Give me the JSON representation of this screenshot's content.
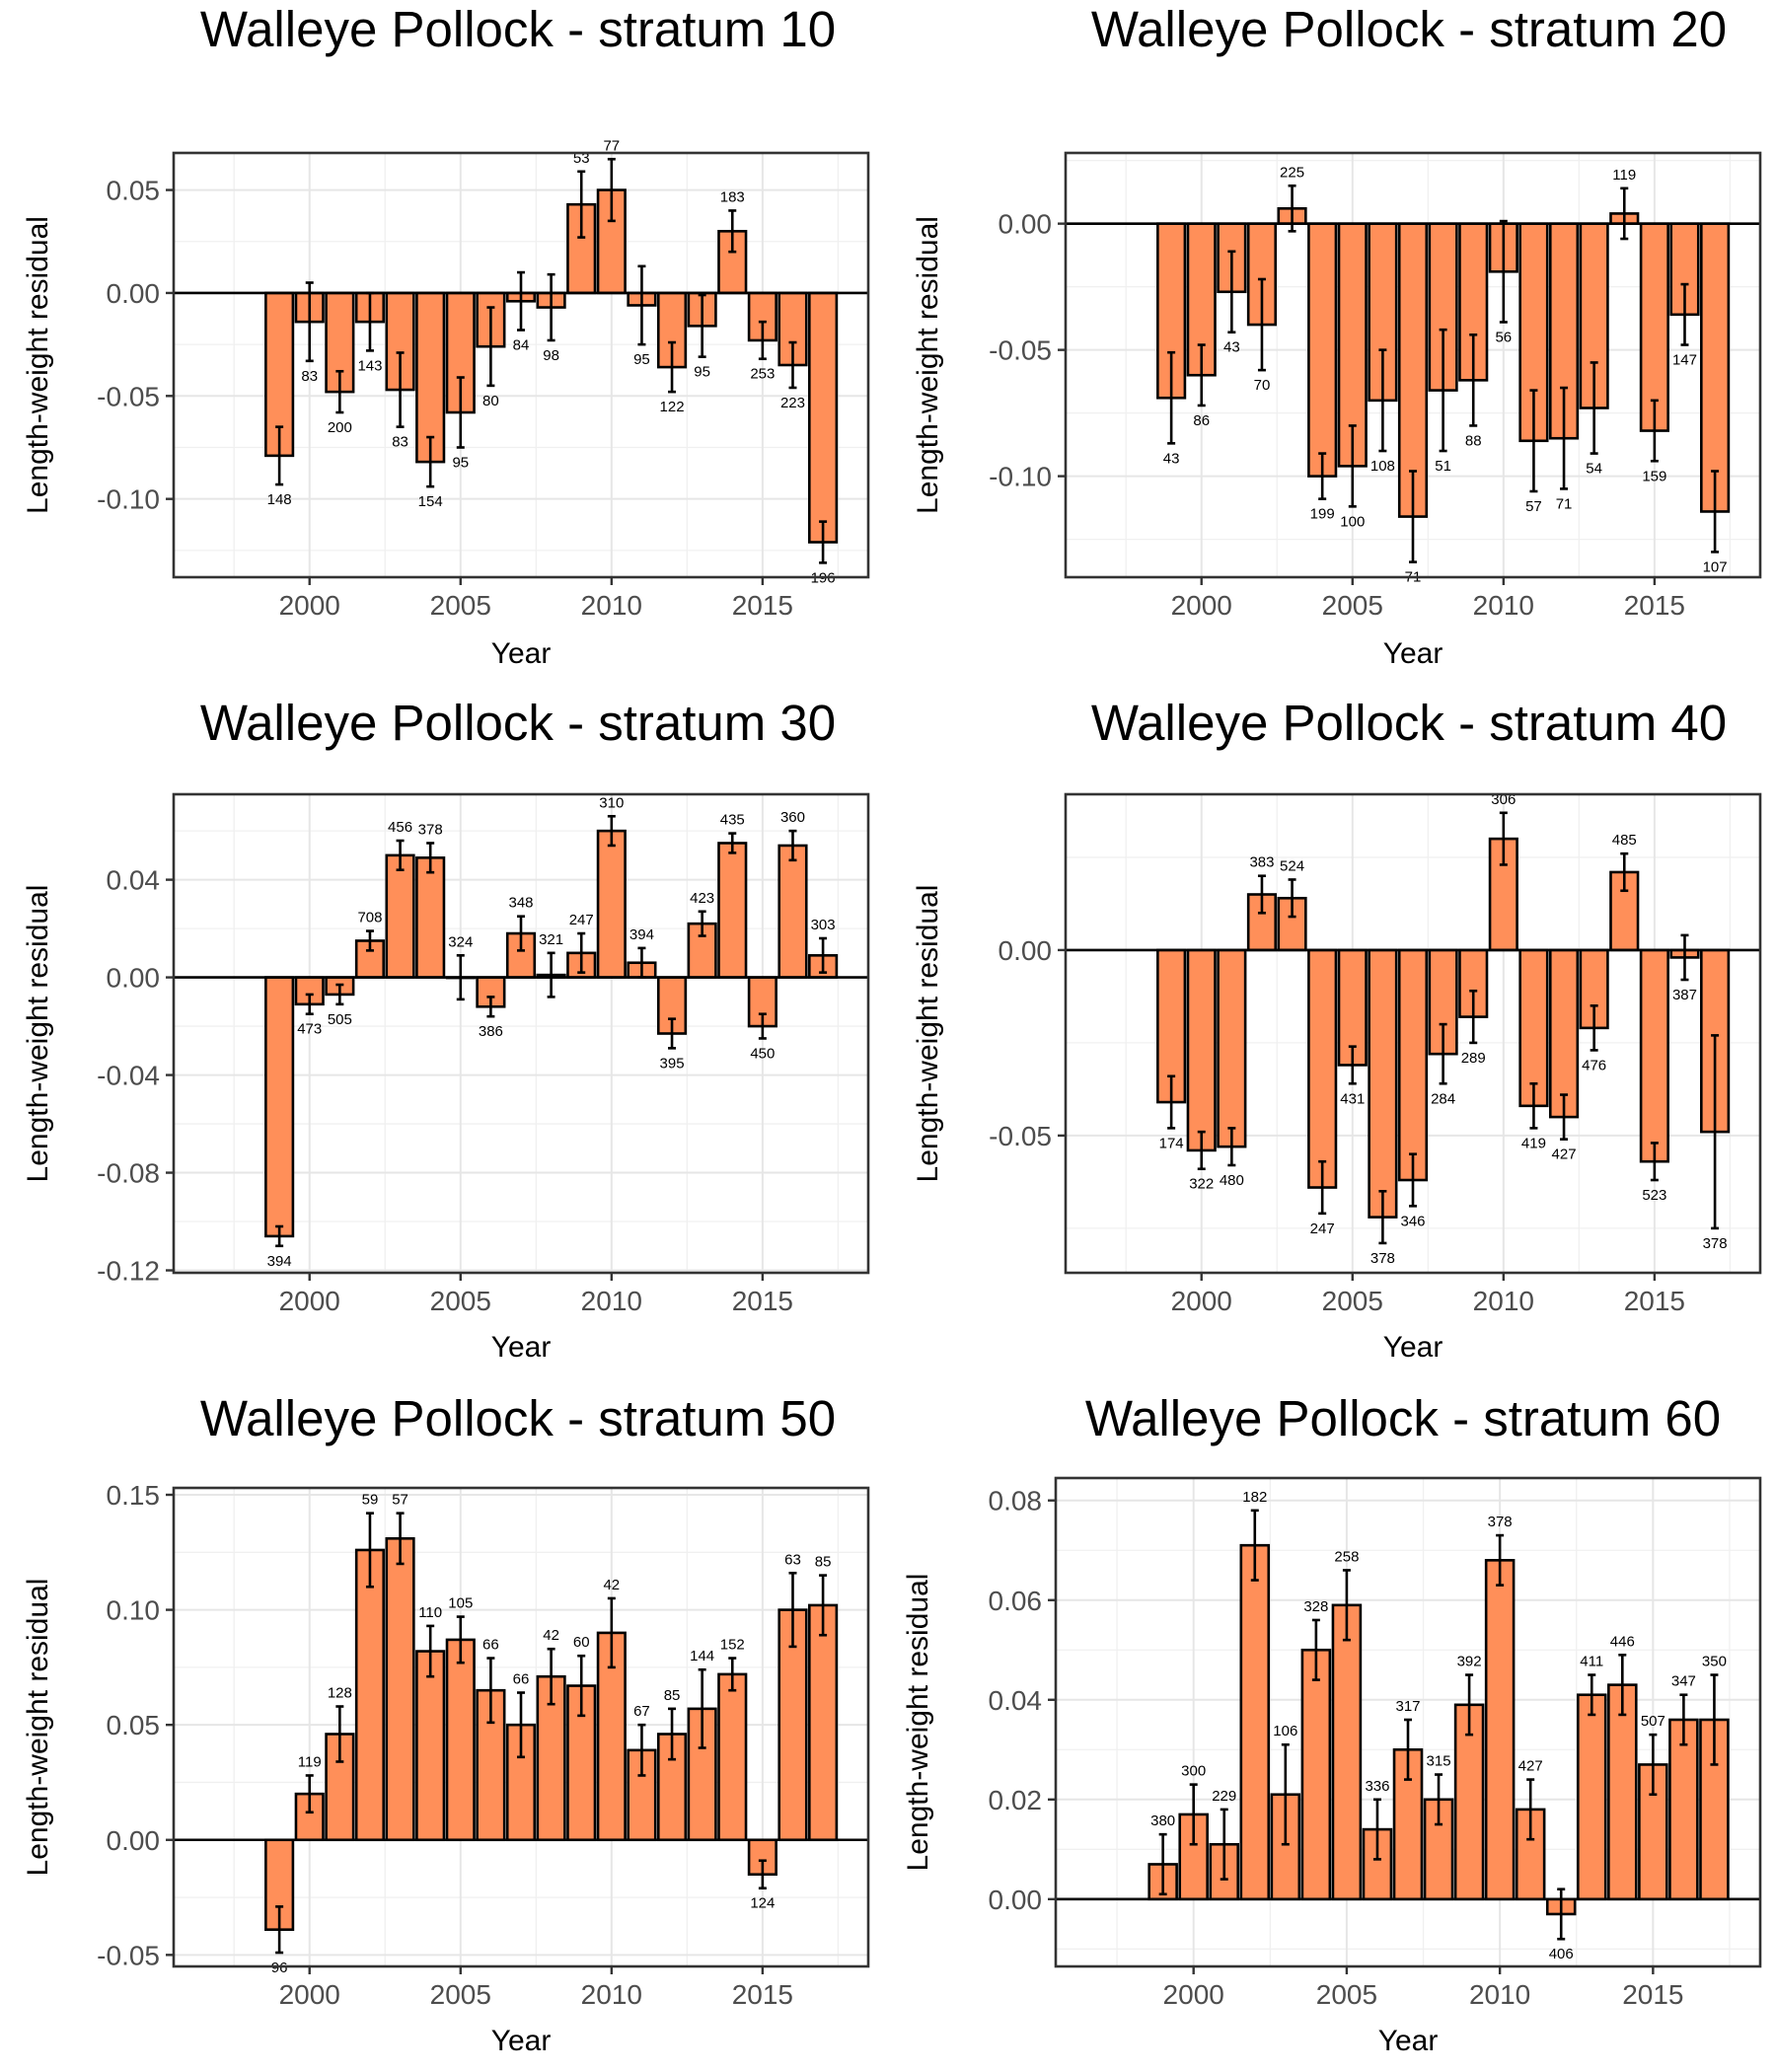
{
  "chart_data": [
    {
      "type": "bar",
      "title": "Walleye Pollock - stratum 10",
      "xlabel": "Year",
      "ylabel": "Length-weight residual",
      "xlim": [
        1995.5,
        2018.5
      ],
      "ylim": [
        -0.138,
        0.068
      ],
      "xticks": [
        "2000",
        "2005",
        "2010",
        "2015"
      ],
      "yticks": [
        "-0.10",
        "-0.05",
        "0.00",
        "0.05"
      ],
      "grid": true,
      "bar_color": "#FF8F59",
      "x": [
        1999,
        2000,
        2001,
        2002,
        2003,
        2004,
        2005,
        2006,
        2007,
        2008,
        2009,
        2010,
        2011,
        2012,
        2013,
        2014,
        2015,
        2016,
        2017
      ],
      "values": [
        -0.079,
        -0.014,
        -0.048,
        -0.014,
        -0.047,
        -0.082,
        -0.058,
        -0.026,
        -0.004,
        -0.007,
        0.043,
        0.05,
        -0.006,
        -0.036,
        -0.016,
        0.03,
        -0.023,
        -0.035,
        -0.121
      ],
      "errors": [
        0.014,
        0.019,
        0.01,
        0.014,
        0.018,
        0.012,
        0.017,
        0.019,
        0.014,
        0.016,
        0.016,
        0.015,
        0.019,
        0.012,
        0.015,
        0.01,
        0.009,
        0.011,
        0.01
      ],
      "n_labels": [
        "148",
        "83",
        "200",
        "143",
        "83",
        "154",
        "95",
        "80",
        "84",
        "98",
        "53",
        "77",
        "95",
        "122",
        "95",
        "183",
        "253",
        "223",
        "196"
      ]
    },
    {
      "type": "bar",
      "title": "Walleye Pollock - stratum 20",
      "xlabel": "Year",
      "ylabel": "Length-weight residual",
      "xlim": [
        1995.5,
        2018.5
      ],
      "ylim": [
        -0.14,
        0.028
      ],
      "xticks": [
        "2000",
        "2005",
        "2010",
        "2015"
      ],
      "yticks": [
        "-0.10",
        "-0.05",
        "0.00"
      ],
      "grid": true,
      "bar_color": "#FF8F59",
      "x": [
        1999,
        2000,
        2001,
        2002,
        2003,
        2004,
        2005,
        2006,
        2007,
        2008,
        2009,
        2010,
        2011,
        2012,
        2013,
        2014,
        2015,
        2016,
        2017
      ],
      "values": [
        -0.069,
        -0.06,
        -0.027,
        -0.04,
        0.006,
        -0.1,
        -0.096,
        -0.07,
        -0.116,
        -0.066,
        -0.062,
        -0.019,
        -0.086,
        -0.085,
        -0.073,
        0.004,
        -0.082,
        -0.036,
        -0.114
      ],
      "errors": [
        0.018,
        0.012,
        0.016,
        0.018,
        0.009,
        0.009,
        0.016,
        0.02,
        0.018,
        0.024,
        0.018,
        0.02,
        0.02,
        0.02,
        0.018,
        0.01,
        0.012,
        0.012,
        0.016
      ],
      "n_labels": [
        "43",
        "86",
        "43",
        "70",
        "225",
        "199",
        "100",
        "108",
        "71",
        "51",
        "88",
        "56",
        "57",
        "71",
        "54",
        "119",
        "159",
        "147",
        "107"
      ]
    },
    {
      "type": "bar",
      "title": "Walleye Pollock - stratum 30",
      "xlabel": "Year",
      "ylabel": "Length-weight residual",
      "xlim": [
        1995.5,
        2018.5
      ],
      "ylim": [
        -0.121,
        0.075
      ],
      "xticks": [
        "2000",
        "2005",
        "2010",
        "2015"
      ],
      "yticks": [
        "-0.12",
        "-0.08",
        "-0.04",
        "0.00",
        "0.04"
      ],
      "grid": true,
      "bar_color": "#FF8F59",
      "x": [
        1999,
        2000,
        2001,
        2002,
        2003,
        2004,
        2005,
        2006,
        2007,
        2008,
        2009,
        2010,
        2011,
        2012,
        2013,
        2014,
        2015,
        2016,
        2017
      ],
      "values": [
        -0.106,
        -0.011,
        -0.007,
        0.015,
        0.05,
        0.049,
        0.0,
        -0.012,
        0.018,
        0.001,
        0.01,
        0.06,
        0.006,
        -0.023,
        0.022,
        0.055,
        -0.02,
        0.054,
        0.009
      ],
      "errors": [
        0.004,
        0.004,
        0.004,
        0.004,
        0.006,
        0.006,
        0.009,
        0.004,
        0.007,
        0.009,
        0.008,
        0.006,
        0.006,
        0.006,
        0.005,
        0.004,
        0.005,
        0.006,
        0.007
      ],
      "n_labels": [
        "394",
        "473",
        "505",
        "708",
        "456",
        "378",
        "324",
        "386",
        "348",
        "321",
        "247",
        "310",
        "394",
        "395",
        "423",
        "435",
        "450",
        "360",
        "303"
      ]
    },
    {
      "type": "bar",
      "title": "Walleye Pollock - stratum 40",
      "xlabel": "Year",
      "ylabel": "Length-weight residual",
      "xlim": [
        1995.5,
        2018.5
      ],
      "ylim": [
        -0.087,
        0.042
      ],
      "xticks": [
        "2000",
        "2005",
        "2010",
        "2015"
      ],
      "yticks": [
        "-0.05",
        "0.00"
      ],
      "grid": true,
      "bar_color": "#FF8F59",
      "x": [
        1999,
        2000,
        2001,
        2002,
        2003,
        2004,
        2005,
        2006,
        2007,
        2008,
        2009,
        2010,
        2011,
        2012,
        2013,
        2014,
        2015,
        2016,
        2017
      ],
      "values": [
        -0.041,
        -0.054,
        -0.053,
        0.015,
        0.014,
        -0.064,
        -0.031,
        -0.072,
        -0.062,
        -0.028,
        -0.018,
        0.03,
        -0.042,
        -0.045,
        -0.021,
        0.021,
        -0.057,
        -0.002,
        -0.049
      ],
      "errors": [
        0.007,
        0.005,
        0.005,
        0.005,
        0.005,
        0.007,
        0.005,
        0.007,
        0.007,
        0.008,
        0.007,
        0.007,
        0.006,
        0.006,
        0.006,
        0.005,
        0.005,
        0.006,
        0.026
      ],
      "n_labels": [
        "174",
        "322",
        "480",
        "383",
        "524",
        "247",
        "431",
        "378",
        "346",
        "284",
        "289",
        "306",
        "419",
        "427",
        "476",
        "485",
        "523",
        "387",
        "378"
      ]
    },
    {
      "type": "bar",
      "title": "Walleye Pollock - stratum 50",
      "xlabel": "Year",
      "ylabel": "Length-weight residual",
      "xlim": [
        1995.5,
        2018.5
      ],
      "ylim": [
        -0.055,
        0.153
      ],
      "xticks": [
        "2000",
        "2005",
        "2010",
        "2015"
      ],
      "yticks": [
        "-0.05",
        "0.00",
        "0.05",
        "0.10",
        "0.15"
      ],
      "grid": true,
      "bar_color": "#FF8F59",
      "x": [
        1999,
        2000,
        2001,
        2002,
        2003,
        2004,
        2005,
        2006,
        2007,
        2008,
        2009,
        2010,
        2011,
        2012,
        2013,
        2014,
        2015,
        2016,
        2017
      ],
      "values": [
        -0.039,
        0.02,
        0.046,
        0.126,
        0.131,
        0.082,
        0.087,
        0.065,
        0.05,
        0.071,
        0.067,
        0.09,
        0.039,
        0.046,
        0.057,
        0.072,
        -0.015,
        0.1,
        0.102
      ],
      "errors": [
        0.01,
        0.008,
        0.012,
        0.016,
        0.011,
        0.011,
        0.01,
        0.014,
        0.014,
        0.012,
        0.013,
        0.015,
        0.011,
        0.011,
        0.017,
        0.007,
        0.006,
        0.016,
        0.013
      ],
      "n_labels": [
        "96",
        "119",
        "128",
        "59",
        "57",
        "110",
        "105",
        "66",
        "66",
        "42",
        "60",
        "42",
        "67",
        "85",
        "144",
        "152",
        "124",
        "63",
        "85"
      ]
    },
    {
      "type": "bar",
      "title": "Walleye Pollock - stratum 60",
      "xlabel": "Year",
      "ylabel": "Length-weight residual",
      "xlim": [
        1995.5,
        2018.5
      ],
      "ylim": [
        -0.0135,
        0.0845
      ],
      "xticks": [
        "2000",
        "2005",
        "2010",
        "2015"
      ],
      "yticks": [
        "0.00",
        "0.02",
        "0.04",
        "0.06",
        "0.08"
      ],
      "grid": true,
      "bar_color": "#FF8F59",
      "x": [
        1999,
        2000,
        2001,
        2002,
        2003,
        2004,
        2005,
        2006,
        2007,
        2008,
        2009,
        2010,
        2011,
        2012,
        2013,
        2014,
        2015,
        2016,
        2017
      ],
      "values": [
        0.007,
        0.017,
        0.011,
        0.071,
        0.021,
        0.05,
        0.059,
        0.014,
        0.03,
        0.02,
        0.039,
        0.068,
        0.018,
        -0.003,
        0.041,
        0.043,
        0.027,
        0.036,
        0.036
      ],
      "errors": [
        0.006,
        0.006,
        0.007,
        0.007,
        0.01,
        0.006,
        0.007,
        0.006,
        0.006,
        0.005,
        0.006,
        0.005,
        0.006,
        0.005,
        0.004,
        0.006,
        0.006,
        0.005,
        0.009
      ],
      "n_labels": [
        "380",
        "300",
        "229",
        "182",
        "106",
        "328",
        "258",
        "336",
        "317",
        "315",
        "392",
        "378",
        "427",
        "406",
        "411",
        "446",
        "507",
        "347",
        "350"
      ]
    }
  ]
}
